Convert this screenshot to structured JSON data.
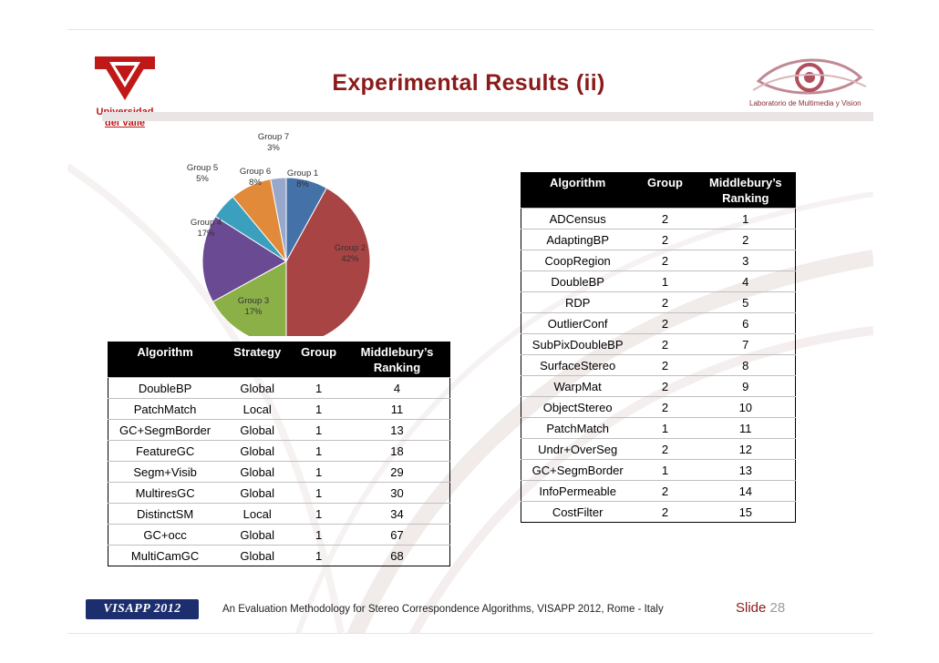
{
  "slide": {
    "title": "Experimental Results (ii)",
    "university_line1": "Universidad",
    "university_line2": "del Valle",
    "lab_name": "Laboratorio de Multimedia y Vision",
    "footer_logo": "VISAPP 2012",
    "footer_text": "An Evaluation Methodology for Stereo Correspondence Algorithms, VISAPP 2012, Rome - Italy",
    "slide_label": "Slide",
    "slide_number": "28"
  },
  "chart_data": {
    "type": "pie",
    "slices": [
      {
        "label": "Group 1",
        "pct": "8%",
        "value": 8,
        "color": "#4472a8"
      },
      {
        "label": "Group 2",
        "pct": "42%",
        "value": 42,
        "color": "#a84444"
      },
      {
        "label": "Group 3",
        "pct": "17%",
        "value": 17,
        "color": "#8cb048"
      },
      {
        "label": "Group 4",
        "pct": "17%",
        "value": 17,
        "color": "#6a4a92"
      },
      {
        "label": "Group 5",
        "pct": "5%",
        "value": 5,
        "color": "#3aa0be"
      },
      {
        "label": "Group 6",
        "pct": "8%",
        "value": 8,
        "color": "#e08a3a"
      },
      {
        "label": "Group 7",
        "pct": "3%",
        "value": 3,
        "color": "#98a8cc"
      }
    ]
  },
  "right_table": {
    "headers": [
      "Algorithm",
      "Group",
      "Middlebury’s Ranking"
    ],
    "rows": [
      [
        "ADCensus",
        "2",
        "1"
      ],
      [
        "AdaptingBP",
        "2",
        "2"
      ],
      [
        "CoopRegion",
        "2",
        "3"
      ],
      [
        "DoubleBP",
        "1",
        "4"
      ],
      [
        "RDP",
        "2",
        "5"
      ],
      [
        "OutlierConf",
        "2",
        "6"
      ],
      [
        "SubPixDoubleBP",
        "2",
        "7"
      ],
      [
        "SurfaceStereo",
        "2",
        "8"
      ],
      [
        "WarpMat",
        "2",
        "9"
      ],
      [
        "ObjectStereo",
        "2",
        "10"
      ],
      [
        "PatchMatch",
        "1",
        "11"
      ],
      [
        "Undr+OverSeg",
        "2",
        "12"
      ],
      [
        "GC+SegmBorder",
        "1",
        "13"
      ],
      [
        "InfoPermeable",
        "2",
        "14"
      ],
      [
        "CostFilter",
        "2",
        "15"
      ]
    ]
  },
  "left_table": {
    "headers": [
      "Algorithm",
      "Strategy",
      "Group",
      "Middlebury’s Ranking"
    ],
    "rows": [
      [
        "DoubleBP",
        "Global",
        "1",
        "4"
      ],
      [
        "PatchMatch",
        "Local",
        "1",
        "11"
      ],
      [
        "GC+SegmBorder",
        "Global",
        "1",
        "13"
      ],
      [
        "FeatureGC",
        "Global",
        "1",
        "18"
      ],
      [
        "Segm+Visib",
        "Global",
        "1",
        "29"
      ],
      [
        "MultiresGC",
        "Global",
        "1",
        "30"
      ],
      [
        "DistinctSM",
        "Local",
        "1",
        "34"
      ],
      [
        "GC+occ",
        "Global",
        "1",
        "67"
      ],
      [
        "MultiCamGC",
        "Global",
        "1",
        "68"
      ]
    ]
  }
}
